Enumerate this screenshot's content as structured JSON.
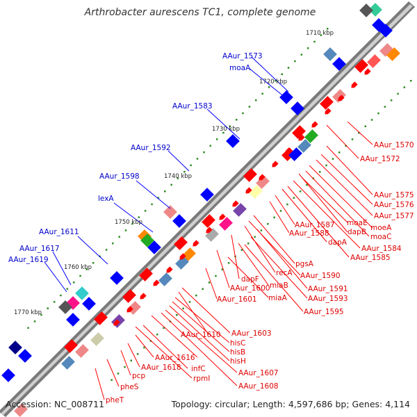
{
  "title": "Arthrobacter aurescens TC1, complete genome",
  "footer": {
    "accession": "Accession: NC_008711",
    "summary": "Topology: circular; Length: 4,597,686 bp; Genes: 4,114"
  },
  "colors": {
    "label_upper": "#0000cc",
    "label_lower": "#dd0000",
    "backbone": "#7a7a7a",
    "tick_dot": "#2e8b22",
    "upper_feature": "#0000ff",
    "lower_feature": "#ff0000"
  },
  "ticks": [
    {
      "id": "tick-1710",
      "text": "1710 kbp"
    },
    {
      "id": "tick-1720",
      "text": "1720 kbp"
    },
    {
      "id": "tick-1730",
      "text": "1730 kbp"
    },
    {
      "id": "tick-1740",
      "text": "1740 kbp"
    },
    {
      "id": "tick-1750",
      "text": "1750 kbp"
    },
    {
      "id": "tick-1760",
      "text": "1760 kbp"
    },
    {
      "id": "tick-1770",
      "text": "1770 kbp"
    }
  ],
  "upper_labels": [
    {
      "id": "AAur_1573",
      "text": "AAur_1573"
    },
    {
      "id": "moaA",
      "text": "moaA"
    },
    {
      "id": "AAur_1583",
      "text": "AAur_1583"
    },
    {
      "id": "AAur_1592",
      "text": "AAur_1592"
    },
    {
      "id": "AAur_1598",
      "text": "AAur_1598"
    },
    {
      "id": "lexA",
      "text": "lexA"
    },
    {
      "id": "AAur_1611",
      "text": "AAur_1611"
    },
    {
      "id": "AAur_1617",
      "text": "AAur_1617"
    },
    {
      "id": "AAur_1619",
      "text": "AAur_1619"
    }
  ],
  "lower_labels": [
    {
      "id": "AAur_1570",
      "text": "AAur_1570"
    },
    {
      "id": "AAur_1572",
      "text": "AAur_1572"
    },
    {
      "id": "AAur_1575",
      "text": "AAur_1575"
    },
    {
      "id": "AAur_1576",
      "text": "AAur_1576"
    },
    {
      "id": "AAur_1577",
      "text": "AAur_1577"
    },
    {
      "id": "moaE",
      "text": "moaE"
    },
    {
      "id": "moaC",
      "text": "moaC"
    },
    {
      "id": "dapB",
      "text": "dapB"
    },
    {
      "id": "moeA",
      "text": "moeA"
    },
    {
      "id": "AAur_1587",
      "text": "AAur_1587"
    },
    {
      "id": "AAur_1588",
      "text": "AAur_1588"
    },
    {
      "id": "dapA",
      "text": "dapA"
    },
    {
      "id": "AAur_1584",
      "text": "AAur_1584"
    },
    {
      "id": "AAur_1585",
      "text": "AAur_1585"
    },
    {
      "id": "pgsA",
      "text": "pgsA"
    },
    {
      "id": "AAur_1590",
      "text": "AAur_1590"
    },
    {
      "id": "recA",
      "text": "recA"
    },
    {
      "id": "dapF",
      "text": "dapF"
    },
    {
      "id": "AAur_1591",
      "text": "AAur_1591"
    },
    {
      "id": "miaB",
      "text": "miaB"
    },
    {
      "id": "AAur_1600",
      "text": "AAur_1600"
    },
    {
      "id": "AAur_1593",
      "text": "AAur_1593"
    },
    {
      "id": "miaA",
      "text": "miaA"
    },
    {
      "id": "AAur_1601",
      "text": "AAur_1601"
    },
    {
      "id": "AAur_1595",
      "text": "AAur_1595"
    },
    {
      "id": "AAur_1603",
      "text": "AAur_1603"
    },
    {
      "id": "AAur_1610",
      "text": "AAur_1610"
    },
    {
      "id": "hisC",
      "text": "hisC"
    },
    {
      "id": "hisB",
      "text": "hisB"
    },
    {
      "id": "hisH",
      "text": "hisH"
    },
    {
      "id": "AAur_1616",
      "text": "AAur_1616"
    },
    {
      "id": "AAur_1618",
      "text": "AAur_1618"
    },
    {
      "id": "infC",
      "text": "infC"
    },
    {
      "id": "AAur_1607",
      "text": "AAur_1607"
    },
    {
      "id": "pcp",
      "text": "pcp"
    },
    {
      "id": "rpmI",
      "text": "rpmI"
    },
    {
      "id": "AAur_1608",
      "text": "AAur_1608"
    },
    {
      "id": "pheS",
      "text": "pheS"
    },
    {
      "id": "pheT",
      "text": "pheT"
    }
  ]
}
